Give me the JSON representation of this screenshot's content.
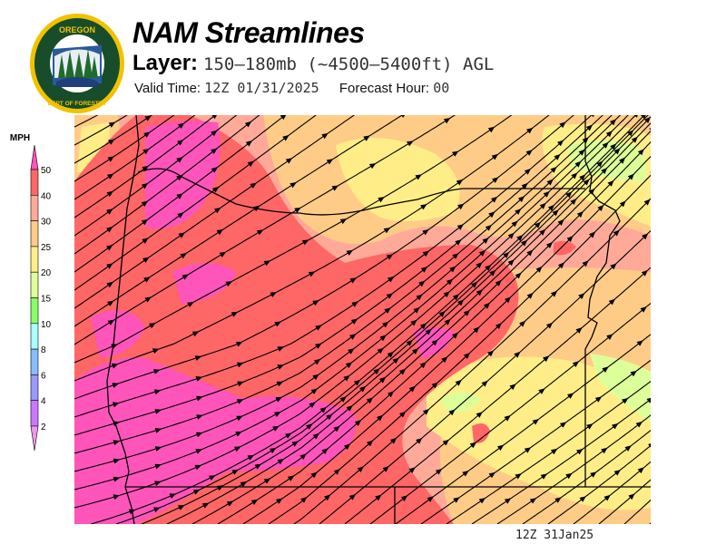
{
  "header": {
    "title": "NAM Streamlines",
    "layer_label": "Layer:",
    "layer_value": "150–180mb (~4500–5400ft) AGL",
    "valid_label": "Valid Time:",
    "valid_value": "12Z 01/31/2025",
    "forecast_label": "Forecast Hour:",
    "forecast_value": "00"
  },
  "logo": {
    "text_top": "OREGON",
    "text_bottom": "DEPARTMENT OF FORESTRY"
  },
  "colorbar": {
    "unit": "MPH",
    "levels": [
      {
        "label": "50",
        "color": "#ff6666"
      },
      {
        "label": "40",
        "color": "#ffaa99"
      },
      {
        "label": "30",
        "color": "#ffcc88"
      },
      {
        "label": "25",
        "color": "#ffee88"
      },
      {
        "label": "20",
        "color": "#ddff99"
      },
      {
        "label": "15",
        "color": "#88ff66"
      },
      {
        "label": "10",
        "color": "#aaffff"
      },
      {
        "label": "8",
        "color": "#88bbff"
      },
      {
        "label": "6",
        "color": "#9999ff"
      },
      {
        "label": "4",
        "color": "#cc77ff"
      },
      {
        "label": "2",
        "color": ""
      }
    ],
    "over_color": "#ff55bb",
    "under_color": "#ee99ee"
  },
  "map": {
    "colors": {
      "magenta": "#ff55bb",
      "red": "#ff6666",
      "salmon": "#ffaa99",
      "orange": "#ffcc88",
      "yellow": "#ffee88",
      "lightgreen": "#ddff99"
    }
  },
  "footer": {
    "stamp": "12Z 31Jan25"
  }
}
